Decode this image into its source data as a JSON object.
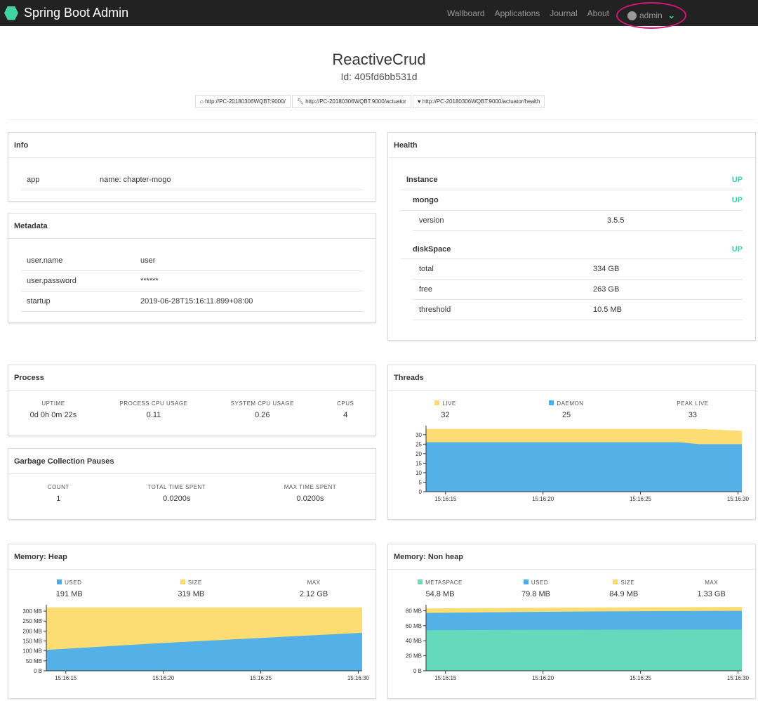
{
  "nav": {
    "brand": "Spring Boot Admin",
    "links": [
      "Wallboard",
      "Applications",
      "Journal",
      "About"
    ],
    "user": "admin"
  },
  "header": {
    "title": "ReactiveCrud",
    "id": "Id: 405fd6bb531d",
    "links": [
      "http://PC-20180306WQBT:9000/",
      "http://PC-20180306WQBT:9000/actuator",
      "http://PC-20180306WQBT:9000/actuator/health"
    ]
  },
  "info": {
    "title": "Info",
    "rows": [
      [
        "app",
        "name: chapter-mogo"
      ]
    ]
  },
  "metadata": {
    "title": "Metadata",
    "rows": [
      [
        "user.name",
        "user"
      ],
      [
        "user.password",
        "******"
      ],
      [
        "startup",
        "2019-06-28T15:16:11.899+08:00"
      ]
    ]
  },
  "health": {
    "title": "Health",
    "instance": "Instance",
    "instance_status": "UP",
    "mongo": "mongo",
    "mongo_status": "UP",
    "mongo_rows": [
      [
        "version",
        "3.5.5"
      ]
    ],
    "disk": "diskSpace",
    "disk_status": "UP",
    "disk_rows": [
      [
        "total",
        "334 GB"
      ],
      [
        "free",
        "263 GB"
      ],
      [
        "threshold",
        "10.5 MB"
      ]
    ]
  },
  "process": {
    "title": "Process",
    "stats": [
      [
        "UPTIME",
        "0d 0h 0m 22s"
      ],
      [
        "PROCESS CPU USAGE",
        "0.11"
      ],
      [
        "SYSTEM CPU USAGE",
        "0.26"
      ],
      [
        "CPUS",
        "4"
      ]
    ]
  },
  "gc": {
    "title": "Garbage Collection Pauses",
    "stats": [
      [
        "COUNT",
        "1"
      ],
      [
        "TOTAL TIME SPENT",
        "0.0200s"
      ],
      [
        "MAX TIME SPENT",
        "0.0200s"
      ]
    ]
  },
  "threads": {
    "title": "Threads",
    "stats": [
      [
        "LIVE",
        "32",
        "#fddb6a"
      ],
      [
        "DAEMON",
        "25",
        "#4aaeee"
      ],
      [
        "PEAK LIVE",
        "33",
        ""
      ]
    ]
  },
  "heap": {
    "title": "Memory: Heap",
    "stats": [
      [
        "USED",
        "191 MB",
        "#4aaeee"
      ],
      [
        "SIZE",
        "319 MB",
        "#fddb6a"
      ],
      [
        "MAX",
        "2.12 GB",
        ""
      ]
    ]
  },
  "nonheap": {
    "title": "Memory: Non heap",
    "stats": [
      [
        "METASPACE",
        "54.8 MB",
        "#66dcb8"
      ],
      [
        "USED",
        "79.8 MB",
        "#4aaeee"
      ],
      [
        "SIZE",
        "84.9 MB",
        "#fddb6a"
      ],
      [
        "MAX",
        "1.33 GB",
        ""
      ]
    ]
  },
  "chart_data": [
    {
      "type": "area",
      "name": "threads",
      "x": [
        "15:16:14",
        "15:16:27",
        "15:16:28",
        "15:16:30"
      ],
      "xticks": [
        "15:16:15",
        "15:16:20",
        "15:16:25",
        "15:16:30"
      ],
      "yticks": [
        0,
        5,
        10,
        15,
        20,
        25,
        30
      ],
      "yunit": "",
      "ylim": [
        0,
        34
      ],
      "series": [
        {
          "name": "DAEMON",
          "color": "#4aaeee",
          "values": [
            26,
            26,
            25,
            25
          ]
        },
        {
          "name": "LIVE",
          "color": "#fddb6a",
          "values": [
            33,
            33,
            33,
            32
          ]
        }
      ]
    },
    {
      "type": "area",
      "name": "heap",
      "x": [
        "15:16:14",
        "15:16:20",
        "15:16:25",
        "15:16:30"
      ],
      "xticks": [
        "15:16:15",
        "15:16:20",
        "15:16:25",
        "15:16:30"
      ],
      "yticks": [
        0,
        50,
        100,
        150,
        200,
        250,
        300
      ],
      "yunit": "MB",
      "ylim": [
        0,
        325
      ],
      "series": [
        {
          "name": "USED",
          "color": "#4aaeee",
          "values": [
            105,
            140,
            165,
            191
          ]
        },
        {
          "name": "SIZE",
          "color": "#fddb6a",
          "values": [
            319,
            319,
            319,
            319
          ]
        }
      ]
    },
    {
      "type": "area",
      "name": "nonheap",
      "x": [
        "15:16:14",
        "15:16:20",
        "15:16:25",
        "15:16:30"
      ],
      "xticks": [
        "15:16:15",
        "15:16:20",
        "15:16:25",
        "15:16:30"
      ],
      "yticks": [
        0,
        20,
        40,
        60,
        80
      ],
      "yunit": "MB",
      "ylim": [
        0,
        86
      ],
      "series": [
        {
          "name": "METASPACE",
          "color": "#66dcb8",
          "values": [
            54,
            54.5,
            54.7,
            54.8
          ]
        },
        {
          "name": "USED",
          "color": "#4aaeee",
          "values": [
            77,
            78.5,
            79.3,
            79.8
          ]
        },
        {
          "name": "SIZE",
          "color": "#fddb6a",
          "values": [
            83,
            84,
            84.5,
            84.9
          ]
        }
      ]
    }
  ]
}
